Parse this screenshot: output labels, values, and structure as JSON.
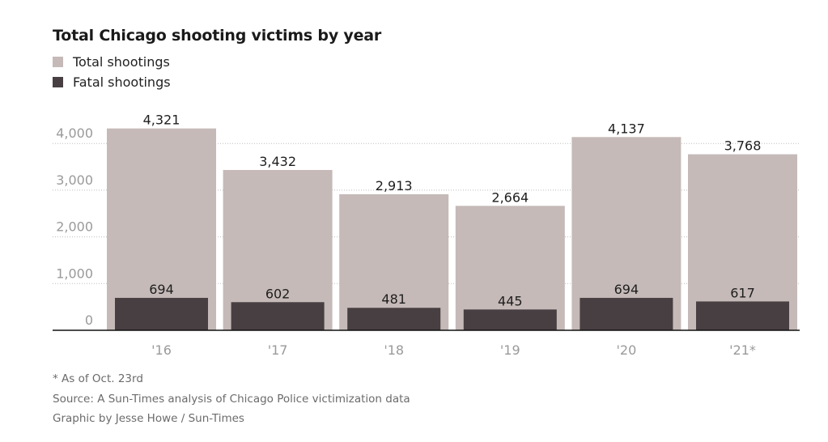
{
  "title": "Total Chicago shooting victims by year",
  "legend": [
    {
      "label": "Total shootings",
      "color": "#c5bab8"
    },
    {
      "label": "Fatal shootings",
      "color": "#483f42"
    }
  ],
  "footnotes": [
    "* As of Oct. 23rd",
    "Source: A Sun-Times analysis of Chicago Police victimization data",
    "Graphic by Jesse Howe / Sun-Times"
  ],
  "chart_data": {
    "type": "bar",
    "title": "Total Chicago shooting victims by year",
    "xlabel": "",
    "ylabel": "",
    "categories": [
      "'16",
      "'17",
      "'18",
      "'19",
      "'20",
      "'21*"
    ],
    "series": [
      {
        "name": "Total shootings",
        "color": "#c5bab8",
        "values": [
          4321,
          3432,
          2913,
          2664,
          4137,
          3768
        ],
        "labels": [
          "4,321",
          "3,432",
          "2,913",
          "2,664",
          "4,137",
          "3,768"
        ]
      },
      {
        "name": "Fatal shootings",
        "color": "#483f42",
        "values": [
          694,
          602,
          481,
          445,
          694,
          617
        ],
        "labels": [
          "694",
          "602",
          "481",
          "445",
          "694",
          "617"
        ]
      }
    ],
    "yticks": [
      0,
      1000,
      2000,
      3000,
      4000
    ],
    "ytick_labels": [
      "0",
      "1,000",
      "2,000",
      "3,000",
      "4,000"
    ],
    "ylim": [
      0,
      4500
    ],
    "grid": true,
    "grid_style": "dotted",
    "legend_position": "top-left",
    "overlap": "fatal bars drawn inside total bars"
  }
}
